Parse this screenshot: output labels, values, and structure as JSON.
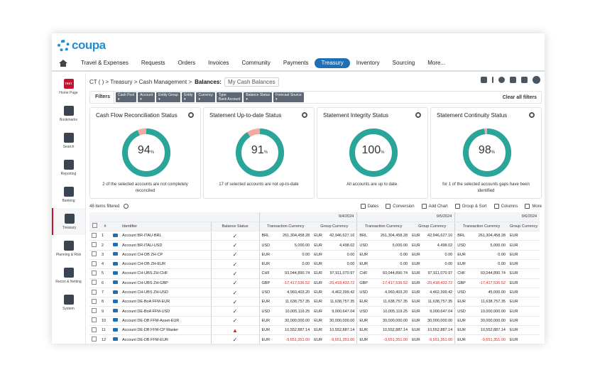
{
  "brand": {
    "name": "coupa"
  },
  "nav": [
    "Travel & Expenses",
    "Requests",
    "Orders",
    "Invoices",
    "Community",
    "Payments",
    "Treasury",
    "Inventory",
    "Sourcing",
    "More..."
  ],
  "nav_active": "Treasury",
  "sidebar": [
    {
      "label": "Home Page",
      "icon": "test-badge-icon",
      "badge": "TEST"
    },
    {
      "label": "Bookmarks",
      "icon": "bookmark-icon"
    },
    {
      "label": "Search",
      "icon": "search-icon"
    },
    {
      "label": "Reporting",
      "icon": "report-icon"
    },
    {
      "label": "Banking",
      "icon": "bank-icon"
    },
    {
      "label": "Treasury",
      "icon": "treasury-icon",
      "active": true
    },
    {
      "label": "Planning & Risk",
      "icon": "chart-icon"
    },
    {
      "label": "Recon & Netting",
      "icon": "network-icon"
    },
    {
      "label": "System",
      "icon": "system-gear-icon"
    }
  ],
  "breadcrumb": {
    "path": "CT ( )  >  Treasury  >  Cash Management  >",
    "current": "Balances:",
    "view": "My Cash Balances"
  },
  "filters": {
    "button": "Filters",
    "chips": [
      [
        "Cash Pool",
        "▾"
      ],
      [
        "Account",
        "▾"
      ],
      [
        "Entity Group",
        "▾"
      ],
      [
        "Entity",
        "▾"
      ],
      [
        "Currency",
        "▾"
      ],
      [
        "Type",
        "Bank Account"
      ],
      [
        "Balance Status",
        "▾"
      ],
      [
        "Forecast Source",
        "▾"
      ]
    ],
    "clear": "Clear all filters"
  },
  "cards": [
    {
      "title": "Cash Flow Reconciliation Status",
      "value": "94",
      "unit": "%",
      "note": "2 of the selected accounts are not completely reconciled",
      "pct": 94
    },
    {
      "title": "Statement Up-to-date Status",
      "value": "91",
      "unit": "%",
      "note": "17 of selected accounts are not up-to-date",
      "pct": 91
    },
    {
      "title": "Statement Integrity Status",
      "value": "100",
      "unit": "%",
      "note": "All accounts are up to date.",
      "pct": 100
    },
    {
      "title": "Statement Continuity Status",
      "value": "98",
      "unit": "%",
      "note": "for 1 of the selected accounts gaps have been identified",
      "pct": 98
    }
  ],
  "colors": {
    "ring": "#2aa59a",
    "ring_rest": "#f2a9a0",
    "accent": "#1f6fb7"
  },
  "grid_toolbar": {
    "count": "48 items filtered",
    "actions": [
      "Dates",
      "Conversion",
      "Add Chart",
      "Group & Sort",
      "Columns",
      "More"
    ]
  },
  "table": {
    "headers": {
      "num": "#",
      "identifier": "Identifier",
      "balance_status": "Balance Status",
      "dates": [
        "9/4/2024",
        "9/5/2024",
        "9/6/2024"
      ],
      "tx_currency": "Transaction Currency",
      "group_currency": "Group Currency"
    },
    "rows": [
      [
        "1",
        "Account BR-ITAU-BRL",
        "ok",
        "BRL",
        "261,304,458.28",
        "EUR",
        "42,946,627.16",
        "BRL",
        "261,304,458.28",
        "EUR",
        "42,946,627.16",
        "BRL",
        "261,304,458.28",
        "EUR"
      ],
      [
        "2",
        "Account BR-ITAU-USD",
        "ok",
        "USD",
        "5,000.00",
        "EUR",
        "4,498.02",
        "USD",
        "5,000.00",
        "EUR",
        "4,498.02",
        "USD",
        "5,000.00",
        "EUR"
      ],
      [
        "3",
        "Account CH-DB ZH-CP",
        "ok",
        "EUR",
        "0.00",
        "EUR",
        "0.00",
        "EUR",
        "0.00",
        "EUR",
        "0.00",
        "EUR",
        "0.00",
        "EUR"
      ],
      [
        "4",
        "Account CH-DB ZH-EUR",
        "ok",
        "EUR",
        "0.00",
        "EUR",
        "0.00",
        "EUR",
        "0.00",
        "EUR",
        "0.00",
        "EUR",
        "0.00",
        "EUR"
      ],
      [
        "5",
        "Account CH-UBS ZH-CHF",
        "ok",
        "CHF",
        "93,044,890.74",
        "EUR",
        "97,911,070.97",
        "CHF",
        "93,044,890.74",
        "EUR",
        "97,911,070.97",
        "CHF",
        "93,044,890.74",
        "EUR"
      ],
      [
        "6",
        "Account CH-UBS ZH-GBP",
        "ok",
        "GBP",
        "-17,417,536.52",
        "EUR",
        "-20,418,433.72",
        "GBP",
        "-17,417,536.52",
        "EUR",
        "-20,418,433.72",
        "GBP",
        "-17,417,536.52",
        "EUR"
      ],
      [
        "7",
        "Account CH-UBS ZH-USD",
        "ok",
        "USD",
        "4,960,403.20",
        "EUR",
        "4,462,399.42",
        "USD",
        "4,960,403.20",
        "EUR",
        "4,462,399.42",
        "USD",
        "45,000.00",
        "EUR"
      ],
      [
        "8",
        "Account DE-BoA FFM-EUR",
        "ok",
        "EUR",
        "11,638,757.35",
        "EUR",
        "11,638,757.35",
        "EUR",
        "11,638,757.35",
        "EUR",
        "11,638,757.35",
        "EUR",
        "11,638,757.35",
        "EUR"
      ],
      [
        "9",
        "Account DE-BoA FFM-USD",
        "ok",
        "USD",
        "10,005,119.25",
        "EUR",
        "9,000,647.04",
        "USD",
        "10,005,119.25",
        "EUR",
        "9,000,647.04",
        "USD",
        "10,000,000.00",
        "EUR"
      ],
      [
        "10",
        "Account DE-DB FFM-Asset-EUR",
        "ok",
        "EUR",
        "30,000,000.00",
        "EUR",
        "30,000,000.00",
        "EUR",
        "30,000,000.00",
        "EUR",
        "30,000,000.00",
        "EUR",
        "30,000,000.00",
        "EUR"
      ],
      [
        "11",
        "Account DE-DB FFM-CP Master",
        "warn",
        "EUR",
        "10,552,887.14",
        "EUR",
        "10,552,887.14",
        "EUR",
        "10,552,887.14",
        "EUR",
        "10,552,887.14",
        "EUR",
        "10,552,887.14",
        "EUR"
      ],
      [
        "12",
        "Account DE-DB FFM-EUR",
        "ok",
        "EUR",
        "-9,651,351.00",
        "EUR",
        "-9,651,351.00",
        "EUR",
        "-9,651,351.00",
        "EUR",
        "-9,651,351.00",
        "EUR",
        "-9,651,351.00",
        "EUR"
      ]
    ]
  }
}
